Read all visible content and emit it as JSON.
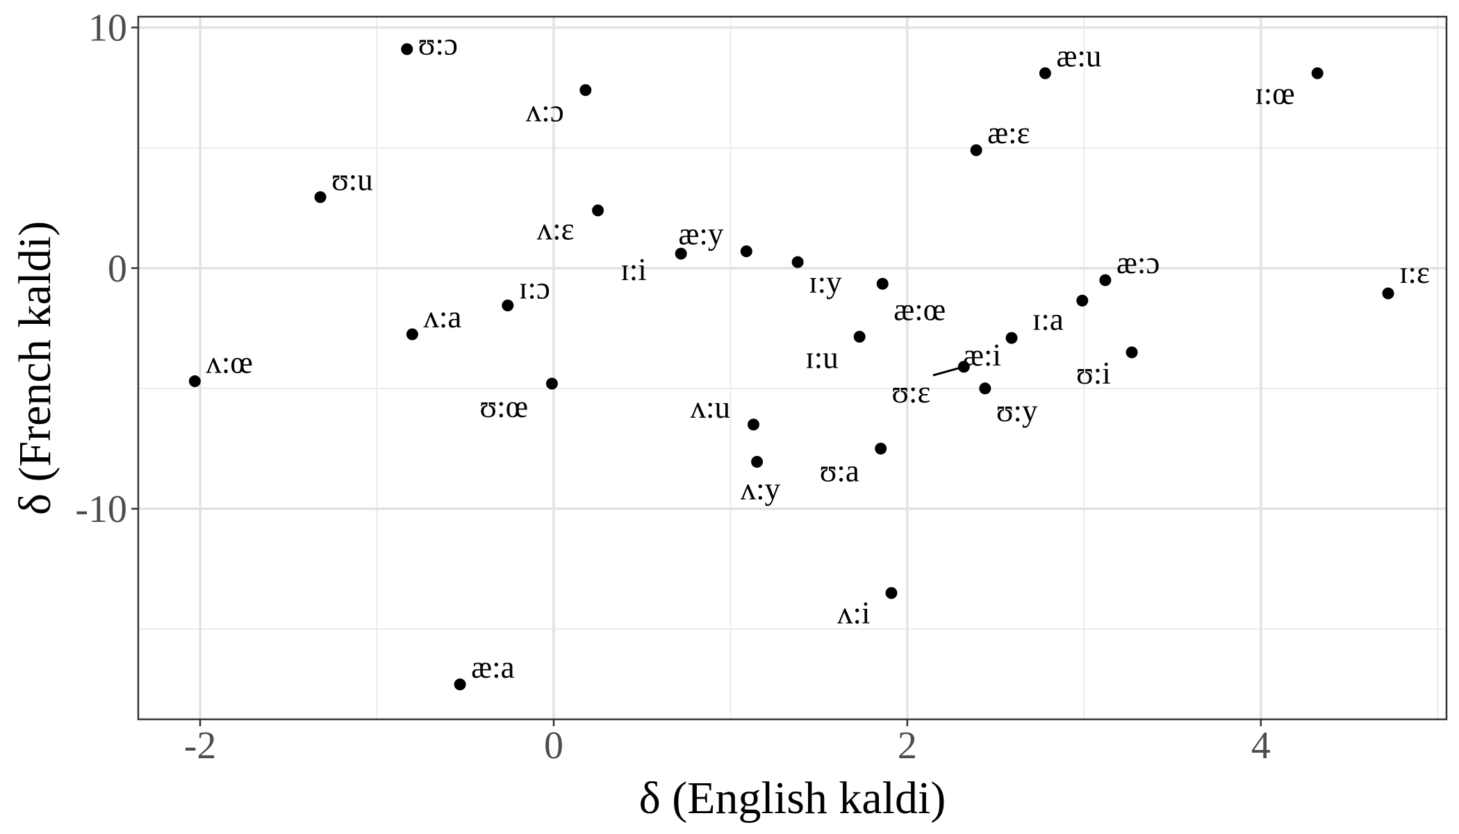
{
  "chart_data": {
    "type": "scatter",
    "title": "",
    "xlabel": "δ (English kaldi)",
    "ylabel": "δ (French kaldi)",
    "xlim": [
      -2.35,
      5.05
    ],
    "ylim": [
      -18.75,
      10.45
    ],
    "xticks": [
      -2,
      0,
      2,
      4
    ],
    "yticks": [
      -10,
      0,
      10
    ],
    "xtick_labels": [
      "-2",
      "0",
      "2",
      "4"
    ],
    "ytick_labels": [
      "-10",
      "0",
      "10"
    ],
    "grid": true,
    "point_color": "#000000",
    "points": [
      {
        "label": "ʊ:ɔ",
        "x": -0.83,
        "y": 9.1
      },
      {
        "label": "ʌ:ɔ",
        "x": 0.18,
        "y": 7.4
      },
      {
        "label": "æ:u",
        "x": 2.78,
        "y": 8.1
      },
      {
        "label": "ɪ:œ",
        "x": 4.32,
        "y": 8.1
      },
      {
        "label": "æ:ɛ",
        "x": 2.39,
        "y": 4.9
      },
      {
        "label": "ʊ:u",
        "x": -1.32,
        "y": 2.95
      },
      {
        "label": "ʌ:ɛ",
        "x": 0.25,
        "y": 2.4
      },
      {
        "label": "æ:y",
        "x": 1.09,
        "y": 0.7
      },
      {
        "label": "ɪ:i",
        "x": 0.72,
        "y": 0.6
      },
      {
        "label": "ɪ:y",
        "x": 1.38,
        "y": 0.25
      },
      {
        "label": "æ:œ",
        "x": 1.86,
        "y": -0.65
      },
      {
        "label": "æ:ɔ",
        "x": 3.12,
        "y": -0.5
      },
      {
        "label": "ɪ:ɛ",
        "x": 4.72,
        "y": -1.05
      },
      {
        "label": "ɪ:a",
        "x": 2.99,
        "y": -1.35
      },
      {
        "label": "ɪ:ɔ",
        "x": -0.26,
        "y": -1.55
      },
      {
        "label": "ʌ:a",
        "x": -0.8,
        "y": -2.75
      },
      {
        "label": "ɪ:u",
        "x": 1.73,
        "y": -2.85
      },
      {
        "label": "æ:i",
        "x": 2.59,
        "y": -2.9
      },
      {
        "label": "ʊ:i",
        "x": 3.27,
        "y": -3.5
      },
      {
        "label": "ʌ:œ",
        "x": -2.03,
        "y": -4.7
      },
      {
        "label": "ʊ:ɛ",
        "x": 2.32,
        "y": -4.1
      },
      {
        "label": "ʊ:œ",
        "x": -0.01,
        "y": -4.8
      },
      {
        "label": "ʊ:y",
        "x": 2.44,
        "y": -5.0
      },
      {
        "label": "ʌ:u",
        "x": 1.13,
        "y": -6.5
      },
      {
        "label": "ʊ:a",
        "x": 1.85,
        "y": -7.5
      },
      {
        "label": "ʌ:y",
        "x": 1.15,
        "y": -8.05
      },
      {
        "label": "ʌ:i",
        "x": 1.91,
        "y": -13.5
      },
      {
        "label": "æ:a",
        "x": -0.53,
        "y": -17.3
      }
    ]
  }
}
